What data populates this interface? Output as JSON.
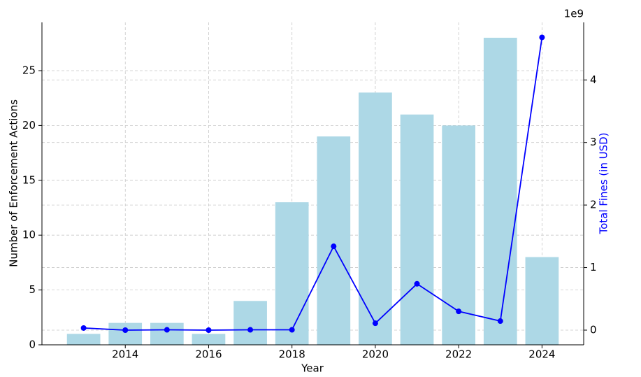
{
  "chart_data": {
    "type": "combo",
    "x_label": "Year",
    "y_label": "Number of Enforcement Actions",
    "y2_label": "Total Fines (in USD)",
    "y2_offset_label": "1e9",
    "x": [
      2013,
      2014,
      2015,
      2016,
      2017,
      2018,
      2019,
      2020,
      2021,
      2022,
      2023,
      2024
    ],
    "series": [
      {
        "type": "bar",
        "color": "#add8e6",
        "values": [
          1,
          2,
          2,
          1,
          4,
          13,
          19,
          23,
          21,
          20,
          28,
          8
        ]
      },
      {
        "type": "line",
        "color": "#0000ff",
        "axis": "y2",
        "values": [
          0.034,
          0.0,
          0.005,
          0.0,
          0.005,
          0.005,
          1.34,
          0.11,
          0.74,
          0.3,
          0.145,
          4.68
        ]
      }
    ],
    "xlim": [
      2012.0,
      2025.0
    ],
    "xticks": [
      2014,
      2016,
      2018,
      2020,
      2022,
      2024
    ],
    "ylim": [
      0,
      29.4
    ],
    "yticks": [
      0,
      5,
      10,
      15,
      20,
      25
    ],
    "y2lim": [
      -0.235,
      4.92
    ],
    "y2ticks": [
      0,
      1,
      2,
      3,
      4
    ],
    "grid": true
  }
}
